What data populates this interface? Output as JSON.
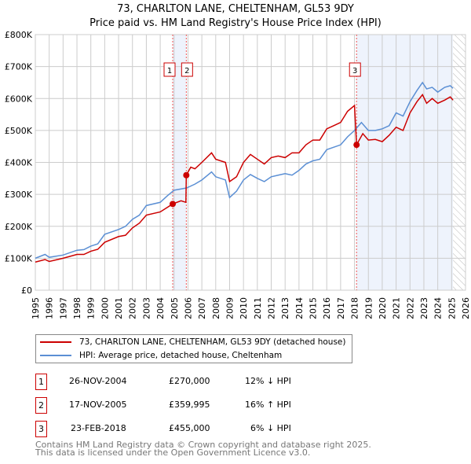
{
  "chart_data": {
    "type": "line",
    "title": "73, CHARLTON LANE, CHELTENHAM, GL53 9DY",
    "subtitle": "Price paid vs. HM Land Registry's House Price Index (HPI)",
    "xlim": [
      1995,
      2026
    ],
    "ylim": [
      0,
      800000
    ],
    "x_ticks": [
      "1995",
      "1996",
      "1997",
      "1998",
      "1999",
      "2000",
      "2001",
      "2002",
      "2003",
      "2004",
      "2005",
      "2006",
      "2007",
      "2008",
      "2009",
      "2010",
      "2011",
      "2012",
      "2013",
      "2014",
      "2015",
      "2016",
      "2017",
      "2018",
      "2019",
      "2020",
      "2021",
      "2022",
      "2023",
      "2024",
      "2025",
      "2026"
    ],
    "y_ticks": [
      {
        "v": 0,
        "label": "£0"
      },
      {
        "v": 100000,
        "label": "£100K"
      },
      {
        "v": 200000,
        "label": "£200K"
      },
      {
        "v": 300000,
        "label": "£300K"
      },
      {
        "v": 400000,
        "label": "£400K"
      },
      {
        "v": 500000,
        "label": "£500K"
      },
      {
        "v": 600000,
        "label": "£600K"
      },
      {
        "v": 700000,
        "label": "£700K"
      },
      {
        "v": 800000,
        "label": "£800K"
      }
    ],
    "grid": true,
    "legend_placement": "below",
    "shaded_ranges": [
      [
        2004.9,
        2005.88
      ],
      [
        2018.15,
        2025.1
      ]
    ],
    "projection_start": 2025.1,
    "series": [
      {
        "name": "73, CHARLTON LANE, CHELTENHAM, GL53 9DY (detached house)",
        "color": "#cc0000",
        "points": [
          [
            1995,
            88000
          ],
          [
            1995.7,
            96000
          ],
          [
            1996,
            90000
          ],
          [
            1997,
            100000
          ],
          [
            1998,
            112000
          ],
          [
            1998.5,
            112000
          ],
          [
            1999,
            122000
          ],
          [
            1999.5,
            128000
          ],
          [
            2000,
            150000
          ],
          [
            2001,
            168000
          ],
          [
            2001.5,
            172000
          ],
          [
            2002,
            195000
          ],
          [
            2002.5,
            210000
          ],
          [
            2003,
            235000
          ],
          [
            2004,
            245000
          ],
          [
            2004.9,
            270000
          ],
          [
            2005.5,
            280000
          ],
          [
            2005.85,
            275000
          ],
          [
            2005.88,
            360000
          ],
          [
            2006.2,
            385000
          ],
          [
            2006.5,
            380000
          ],
          [
            2007,
            400000
          ],
          [
            2007.7,
            430000
          ],
          [
            2008,
            410000
          ],
          [
            2008.7,
            400000
          ],
          [
            2009,
            340000
          ],
          [
            2009.5,
            355000
          ],
          [
            2010,
            400000
          ],
          [
            2010.5,
            425000
          ],
          [
            2011,
            410000
          ],
          [
            2011.5,
            395000
          ],
          [
            2012,
            415000
          ],
          [
            2012.5,
            420000
          ],
          [
            2013,
            415000
          ],
          [
            2013.5,
            430000
          ],
          [
            2014,
            430000
          ],
          [
            2014.5,
            455000
          ],
          [
            2015,
            470000
          ],
          [
            2015.5,
            470000
          ],
          [
            2016,
            505000
          ],
          [
            2016.5,
            515000
          ],
          [
            2017,
            525000
          ],
          [
            2017.5,
            560000
          ],
          [
            2018.0,
            578000
          ],
          [
            2018.15,
            455000
          ],
          [
            2018.6,
            490000
          ],
          [
            2019,
            470000
          ],
          [
            2019.5,
            472000
          ],
          [
            2020,
            465000
          ],
          [
            2020.5,
            485000
          ],
          [
            2021,
            510000
          ],
          [
            2021.5,
            500000
          ],
          [
            2022,
            555000
          ],
          [
            2022.5,
            590000
          ],
          [
            2022.9,
            612000
          ],
          [
            2023.2,
            585000
          ],
          [
            2023.6,
            600000
          ],
          [
            2024,
            585000
          ],
          [
            2024.5,
            595000
          ],
          [
            2024.9,
            605000
          ],
          [
            2025.1,
            595000
          ]
        ]
      },
      {
        "name": "HPI: Average price, detached house, Cheltenham",
        "color": "#5b8fd4",
        "points": [
          [
            1995,
            100000
          ],
          [
            1995.7,
            112000
          ],
          [
            1996,
            103000
          ],
          [
            1997,
            110000
          ],
          [
            1998,
            125000
          ],
          [
            1998.5,
            127000
          ],
          [
            1999,
            138000
          ],
          [
            1999.5,
            145000
          ],
          [
            2000,
            175000
          ],
          [
            2001,
            190000
          ],
          [
            2001.5,
            200000
          ],
          [
            2002,
            222000
          ],
          [
            2002.5,
            235000
          ],
          [
            2003,
            265000
          ],
          [
            2004,
            275000
          ],
          [
            2004.5,
            295000
          ],
          [
            2005,
            313000
          ],
          [
            2005.9,
            320000
          ],
          [
            2006.5,
            332000
          ],
          [
            2007,
            345000
          ],
          [
            2007.7,
            370000
          ],
          [
            2008,
            355000
          ],
          [
            2008.7,
            345000
          ],
          [
            2009,
            290000
          ],
          [
            2009.5,
            310000
          ],
          [
            2010,
            345000
          ],
          [
            2010.5,
            362000
          ],
          [
            2011,
            350000
          ],
          [
            2011.5,
            340000
          ],
          [
            2012,
            355000
          ],
          [
            2012.5,
            360000
          ],
          [
            2013,
            365000
          ],
          [
            2013.5,
            360000
          ],
          [
            2014,
            375000
          ],
          [
            2014.5,
            395000
          ],
          [
            2015,
            405000
          ],
          [
            2015.5,
            410000
          ],
          [
            2016,
            440000
          ],
          [
            2017,
            455000
          ],
          [
            2017.5,
            480000
          ],
          [
            2018,
            500000
          ],
          [
            2018.5,
            525000
          ],
          [
            2019,
            500000
          ],
          [
            2019.5,
            500000
          ],
          [
            2020,
            505000
          ],
          [
            2020.5,
            515000
          ],
          [
            2021,
            555000
          ],
          [
            2021.5,
            545000
          ],
          [
            2022,
            590000
          ],
          [
            2022.5,
            625000
          ],
          [
            2022.9,
            650000
          ],
          [
            2023.2,
            630000
          ],
          [
            2023.6,
            635000
          ],
          [
            2024,
            620000
          ],
          [
            2024.5,
            635000
          ],
          [
            2024.9,
            640000
          ],
          [
            2025.1,
            632000
          ]
        ]
      }
    ],
    "sales": [
      {
        "id": "1",
        "x": 2004.9,
        "price": 270000
      },
      {
        "id": "2",
        "x": 2005.88,
        "price": 359995
      },
      {
        "id": "3",
        "x": 2018.15,
        "price": 455000
      }
    ]
  },
  "legend": {
    "property": "73, CHARLTON LANE, CHELTENHAM, GL53 9DY (detached house)",
    "hpi": "HPI: Average price, detached house, Cheltenham"
  },
  "transactions": [
    {
      "id": "1",
      "date": "26-NOV-2004",
      "price": "£270,000",
      "hpi": "12% ↓ HPI"
    },
    {
      "id": "2",
      "date": "17-NOV-2005",
      "price": "£359,995",
      "hpi": "16% ↑ HPI"
    },
    {
      "id": "3",
      "date": "23-FEB-2018",
      "price": "£455,000",
      "hpi": "6% ↓ HPI"
    }
  ],
  "footer": {
    "line1": "Contains HM Land Registry data © Crown copyright and database right 2025.",
    "line2": "This data is licensed under the Open Government Licence v3.0."
  }
}
